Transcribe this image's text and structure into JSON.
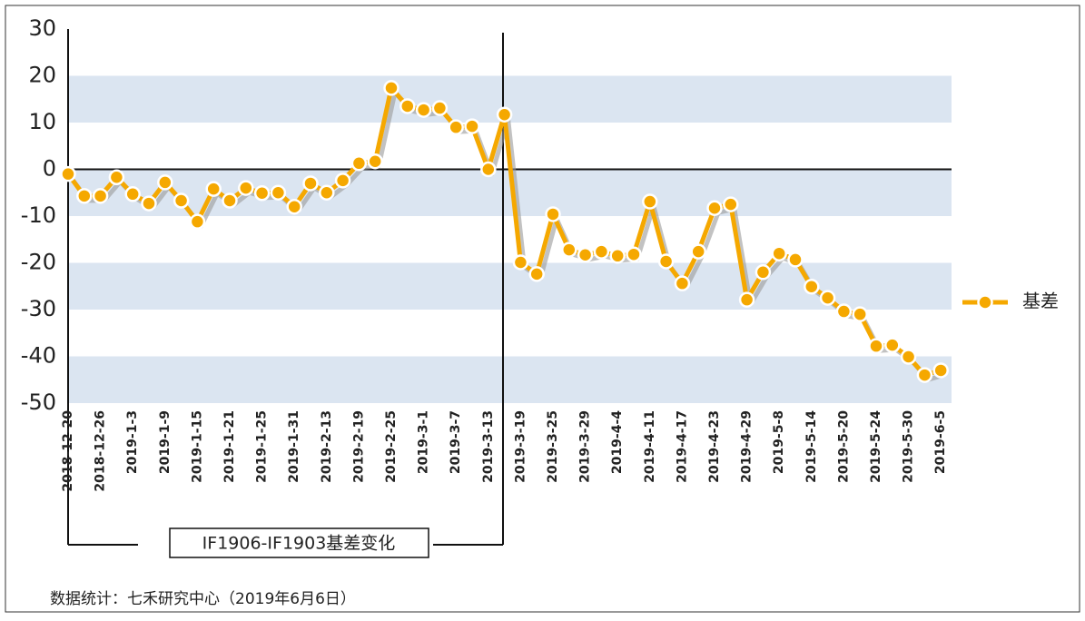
{
  "chart_data": {
    "type": "line",
    "annotation": "IF1906-IF1903基差变化",
    "source": "数据统计：七禾研究中心（2019年6月6日）",
    "categories": [
      "2018-12-20",
      null,
      "2018-12-26",
      null,
      "2019-1-3",
      null,
      "2019-1-9",
      null,
      "2019-1-15",
      null,
      "2019-1-21",
      null,
      "2019-1-25",
      null,
      "2019-1-31",
      null,
      "2019-2-13",
      null,
      "2019-2-19",
      null,
      "2019-2-25",
      null,
      "2019-3-1",
      null,
      "2019-3-7",
      null,
      "2019-3-13",
      null,
      "2019-3-19",
      null,
      "2019-3-25",
      null,
      "2019-3-29",
      null,
      "2019-4-4",
      null,
      "2019-4-11",
      null,
      "2019-4-17",
      null,
      "2019-4-23",
      null,
      "2019-4-29",
      null,
      "2019-5-8",
      null,
      "2019-5-14",
      null,
      "2019-5-20",
      null,
      "2019-5-24",
      null,
      "2019-5-30",
      null,
      "2019-6-5"
    ],
    "series": [
      {
        "name": "基差",
        "color": "#f5a800",
        "values": [
          -1,
          -5.7,
          -5.7,
          -1.7,
          -5.3,
          -7.3,
          -2.8,
          -6.7,
          -11.2,
          -4.2,
          -6.7,
          -4,
          -5.1,
          -5,
          -8,
          -3,
          -5,
          -2.4,
          1.3,
          1.7,
          17.4,
          13.5,
          12.7,
          13.1,
          9,
          9.2,
          0,
          11.7,
          -19.9,
          -22.4,
          -9.6,
          -17.2,
          -18.3,
          -17.6,
          -18.5,
          -18.2,
          -6.9,
          -19.7,
          -24.4,
          -17.6,
          -8.3,
          -7.5,
          -27.9,
          -22,
          -18,
          -19.3,
          -25.1,
          -27.5,
          -30.4,
          -31,
          -37.8,
          -37.6,
          -40.1,
          -44,
          -43
        ]
      }
    ],
    "ylim": [
      -50,
      30
    ],
    "yticks": [
      -50,
      -40,
      -30,
      -20,
      -10,
      0,
      10,
      20,
      30
    ],
    "grid_bands": "#dbe5f1",
    "legend": "right"
  }
}
